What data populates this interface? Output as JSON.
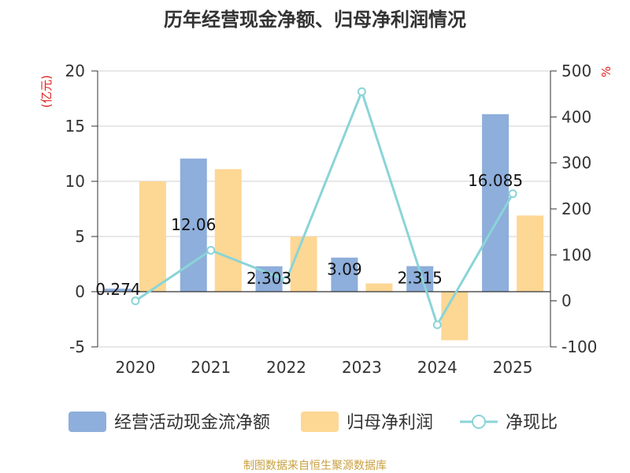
{
  "chart_data": {
    "type": "bar",
    "title": "历年经营现金净额、归母净利润情况",
    "categories": [
      "2020",
      "2021",
      "2022",
      "2023",
      "2024",
      "2025"
    ],
    "y_left": {
      "unit_label": "(亿元)",
      "lim": [
        -5,
        20
      ],
      "ticks": [
        "-5",
        "0",
        "5",
        "10",
        "15",
        "20"
      ]
    },
    "y_right": {
      "unit_label": "%",
      "lim": [
        -100,
        500
      ],
      "ticks": [
        "-100",
        "0",
        "100",
        "200",
        "300",
        "400",
        "500"
      ]
    },
    "series": [
      {
        "name": "经营活动现金流净额",
        "kind": "bar",
        "axis": "left",
        "color": "#8eaedb",
        "values": [
          0.274,
          12.06,
          2.303,
          3.09,
          2.315,
          16.085
        ],
        "labels": [
          "0.274",
          "12.06",
          "2.303",
          "3.09",
          "2.315",
          "16.085"
        ]
      },
      {
        "name": "归母净利润",
        "kind": "bar",
        "axis": "left",
        "color": "#fdd794",
        "values": [
          10.0,
          11.1,
          5.0,
          0.75,
          -4.4,
          6.9
        ]
      },
      {
        "name": "净现比",
        "kind": "line",
        "axis": "right",
        "color": "#8ad4d8",
        "values": [
          0,
          110,
          45,
          455,
          -52,
          233
        ]
      }
    ],
    "grid": true,
    "legend_position": "bottom"
  },
  "source_note": "制图数据来自恒生聚源数据库"
}
